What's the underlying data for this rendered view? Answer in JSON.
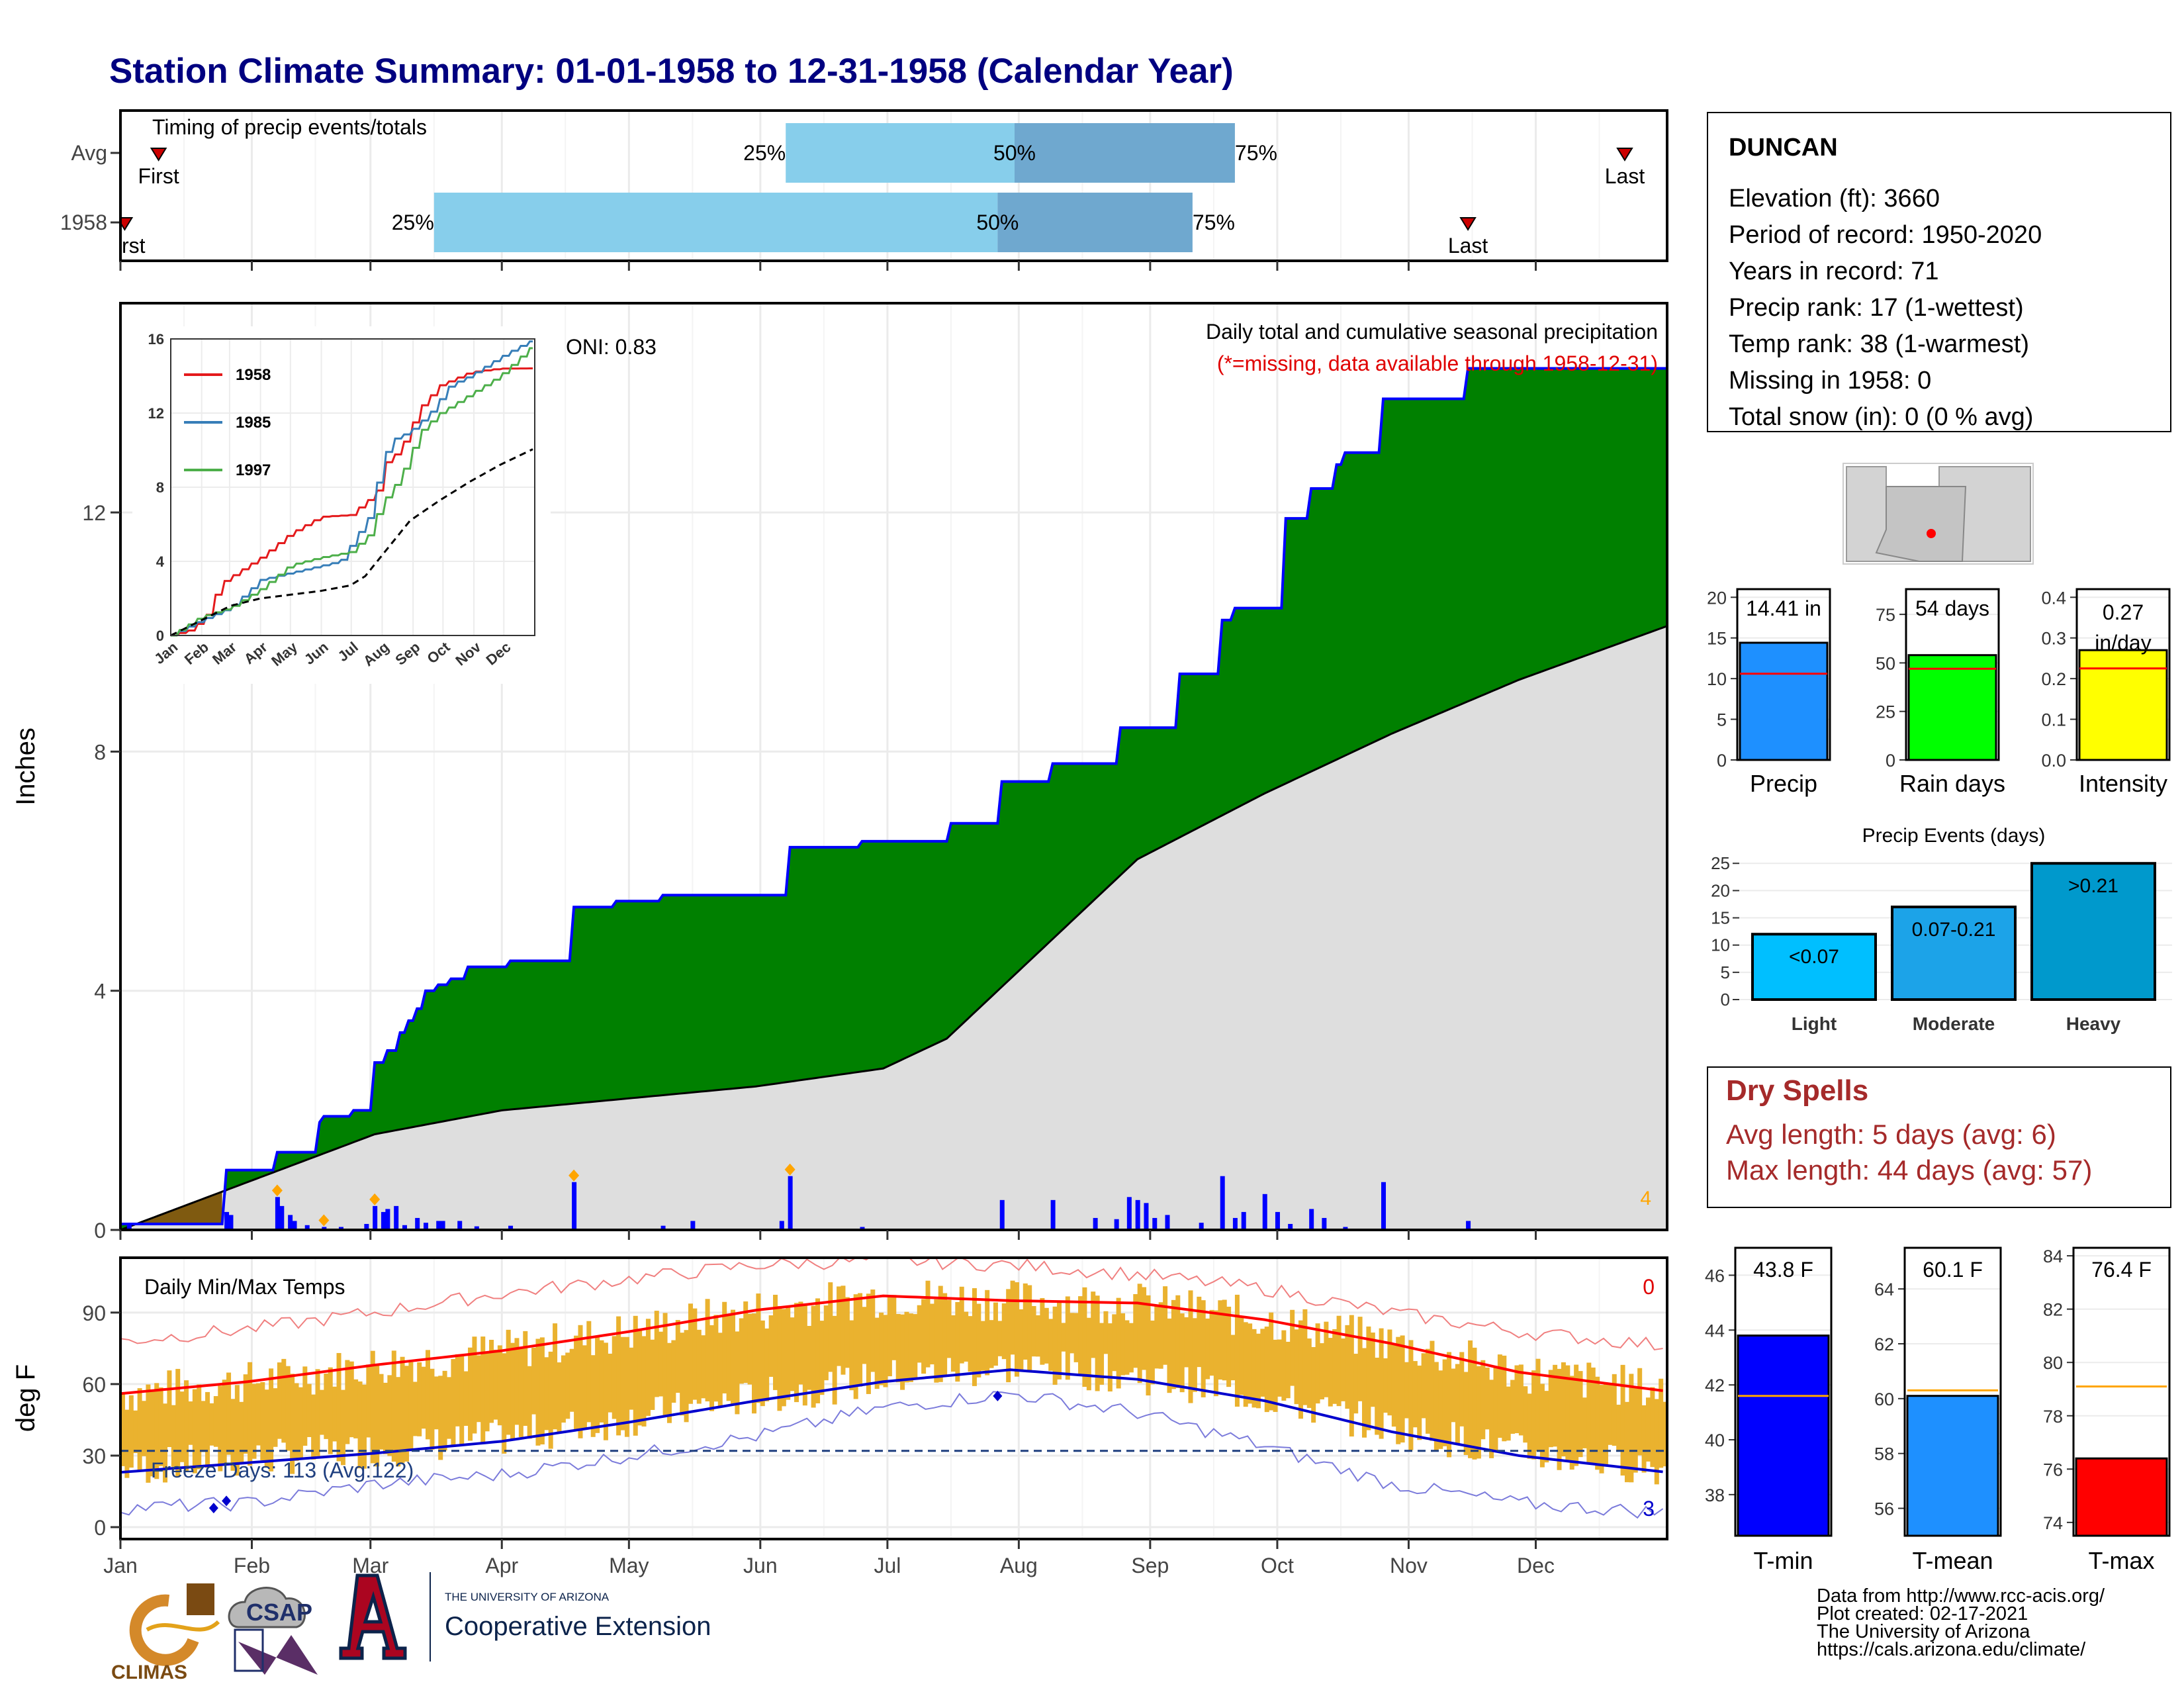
{
  "page_title": "Station Climate Summary: 01-01-1958 to 12-31-1958 (Calendar Year)",
  "colors": {
    "title": "#000080",
    "precip_green": "#008000",
    "precip_avg": "#dedede",
    "deficit_brown": "#7f5a10",
    "cum_line": "#0000ff",
    "daily_bar": "#0000ff",
    "quartile_light": "#87ceeb",
    "quartile_dark": "#6fa8cf",
    "marker_red": "#cc0000",
    "temp_bar": "#eab22f",
    "tmax_line": "#ff0000",
    "tmin_line": "#0000cd",
    "record_max": "#f08080",
    "record_min": "#7b7bdb",
    "dry_text": "#a52a2a"
  },
  "months": [
    "Jan",
    "Feb",
    "Mar",
    "Apr",
    "May",
    "Jun",
    "Jul",
    "Aug",
    "Sep",
    "Oct",
    "Nov",
    "Dec"
  ],
  "timing_panel": {
    "title": "Timing of precip events/totals",
    "rows": [
      {
        "label": "Avg",
        "first_label": "First",
        "first_day": 9,
        "last_label": "Last",
        "last_day": 355,
        "q25_label": "25%",
        "q50_label": "50%",
        "q75_label": "75%",
        "q25": 157,
        "q50": 211,
        "q75": 263
      },
      {
        "label": "1958",
        "first_label": "First",
        "first_day": 1,
        "last_label": "Last",
        "last_day": 318,
        "q25_label": "25%",
        "q50_label": "50%",
        "q75_label": "75%",
        "q25": 74,
        "q50": 207,
        "q75": 253
      }
    ]
  },
  "precip_panel": {
    "title": "Daily total and cumulative seasonal precipitation",
    "missing_note": "(*=missing, data available through 1958-12-31)",
    "oni": "ONI: 0.83",
    "ylabel": "Inches",
    "yticks": [
      "0",
      "4",
      "8",
      "12"
    ],
    "corner_count": "4"
  },
  "chart_data": [
    {
      "type": "area",
      "title": "Daily total and cumulative seasonal precipitation",
      "ylabel": "Inches",
      "ylim": [
        0,
        15.5
      ],
      "x_unit": "day of year",
      "series": [
        {
          "name": "1958 cumulative",
          "x": [
            1,
            25,
            37,
            47,
            48,
            55,
            60,
            63,
            66,
            68,
            70,
            72,
            75,
            78,
            82,
            92,
            107,
            117,
            128,
            158,
            175,
            196,
            208,
            220,
            236,
            250,
            260,
            263,
            275,
            281,
            287,
            289,
            298,
            318,
            365
          ],
          "y": [
            0.1,
            1.0,
            1.3,
            1.8,
            1.9,
            2.0,
            2.8,
            3.0,
            3.3,
            3.5,
            3.7,
            4.0,
            4.1,
            4.2,
            4.4,
            4.5,
            5.4,
            5.5,
            5.6,
            6.4,
            6.5,
            6.8,
            7.5,
            7.8,
            8.4,
            9.3,
            10.2,
            10.4,
            11.9,
            12.4,
            12.8,
            13.0,
            13.9,
            14.41,
            14.41
          ]
        },
        {
          "name": "average cumulative",
          "x": [
            0,
            30,
            60,
            90,
            120,
            150,
            180,
            195,
            210,
            240,
            270,
            300,
            330,
            365
          ],
          "y": [
            0.0,
            0.8,
            1.6,
            2.0,
            2.2,
            2.4,
            2.7,
            3.2,
            4.2,
            6.2,
            7.3,
            8.3,
            9.2,
            10.1
          ]
        }
      ],
      "daily_precip": {
        "x": [
          2,
          25,
          26,
          37,
          38,
          40,
          41,
          44,
          48,
          52,
          58,
          60,
          62,
          63,
          65,
          67,
          70,
          72,
          75,
          76,
          80,
          84,
          92,
          107,
          128,
          135,
          156,
          158,
          175,
          208,
          220,
          230,
          235,
          238,
          240,
          242,
          244,
          247,
          255,
          260,
          263,
          265,
          270,
          273,
          276,
          281,
          284,
          289,
          298,
          318
        ],
        "y": [
          0.12,
          0.3,
          0.25,
          0.55,
          0.4,
          0.25,
          0.15,
          0.08,
          0.05,
          0.05,
          0.1,
          0.4,
          0.3,
          0.35,
          0.4,
          0.08,
          0.2,
          0.12,
          0.15,
          0.15,
          0.15,
          0.06,
          0.07,
          0.8,
          0.07,
          0.15,
          0.15,
          0.9,
          0.05,
          0.5,
          0.5,
          0.2,
          0.18,
          0.55,
          0.5,
          0.45,
          0.2,
          0.25,
          0.12,
          0.9,
          0.2,
          0.3,
          0.6,
          0.3,
          0.1,
          0.35,
          0.2,
          0.05,
          0.8,
          0.15
        ]
      },
      "missing_markers": [
        37,
        48,
        60,
        107,
        158
      ]
    },
    {
      "type": "line",
      "title": "",
      "inset": true,
      "ylim": [
        0,
        16
      ],
      "yticks": [
        "0",
        "4",
        "8",
        "12",
        "16"
      ],
      "xticks": [
        "Jan",
        "Feb",
        "Mar",
        "Apr",
        "May",
        "Jun",
        "Jul",
        "Aug",
        "Sep",
        "Oct",
        "Nov",
        "Dec"
      ],
      "series": [
        {
          "name": "1958",
          "color": "#e41a1c",
          "x": [
            0,
            20,
            35,
            50,
            70,
            90,
            120,
            150,
            180,
            200,
            210,
            215,
            230,
            250,
            270,
            300,
            330,
            365
          ],
          "y": [
            0,
            0.3,
            1.0,
            2.8,
            3.5,
            4.2,
            5.5,
            6.4,
            6.5,
            7.4,
            8.0,
            9.3,
            10.0,
            12.3,
            13.5,
            14.2,
            14.4,
            14.41
          ]
        },
        {
          "name": "1985",
          "color": "#377eb8",
          "x": [
            0,
            30,
            60,
            90,
            130,
            170,
            200,
            210,
            220,
            240,
            260,
            280,
            300,
            330,
            350,
            365
          ],
          "y": [
            0,
            0.8,
            1.5,
            3.0,
            3.5,
            4.0,
            6.5,
            9.0,
            10.5,
            11.0,
            12.0,
            13.5,
            14.0,
            15.0,
            15.6,
            16.0
          ]
        },
        {
          "name": "1997",
          "color": "#4daf4a",
          "x": [
            0,
            30,
            60,
            90,
            120,
            150,
            180,
            200,
            210,
            230,
            250,
            270,
            300,
            330,
            360,
            365
          ],
          "y": [
            0,
            1.0,
            1.5,
            2.5,
            3.8,
            4.2,
            4.5,
            5.5,
            7.0,
            8.5,
            11.0,
            12.0,
            13.0,
            14.0,
            15.5,
            15.7
          ]
        },
        {
          "name": "average",
          "color": "#000000",
          "x": [
            0,
            30,
            60,
            90,
            120,
            150,
            180,
            195,
            210,
            240,
            270,
            300,
            330,
            365
          ],
          "y": [
            0,
            0.8,
            1.6,
            2.0,
            2.2,
            2.4,
            2.7,
            3.2,
            4.2,
            6.2,
            7.3,
            8.3,
            9.2,
            10.1
          ]
        }
      ]
    },
    {
      "type": "bar",
      "title": "Daily Min/Max Temps",
      "ylabel": "deg F",
      "ylim": [
        -5,
        113
      ],
      "yticks": [
        "0",
        "30",
        "60",
        "90"
      ],
      "freeze_label": "Freeze Days: 113 (Avg:122)",
      "count_top": "0",
      "count_bottom": "3",
      "avg_tmax": {
        "x": [
          0,
          30,
          60,
          90,
          120,
          150,
          180,
          210,
          240,
          270,
          300,
          330,
          365
        ],
        "y": [
          56,
          61,
          68,
          74,
          82,
          91,
          97,
          95,
          94,
          87,
          77,
          65,
          57
        ]
      },
      "avg_tmin": {
        "x": [
          0,
          30,
          60,
          90,
          120,
          150,
          180,
          210,
          240,
          270,
          300,
          330,
          365
        ],
        "y": [
          23,
          27,
          31,
          36,
          44,
          53,
          61,
          66,
          62,
          53,
          40,
          30,
          23
        ]
      },
      "record_max": {
        "x": [
          0,
          30,
          60,
          90,
          120,
          150,
          180,
          210,
          240,
          270,
          300,
          330,
          365
        ],
        "y": [
          78,
          83,
          90,
          98,
          104,
          110,
          112,
          110,
          106,
          100,
          90,
          82,
          76
        ]
      },
      "record_min": {
        "x": [
          0,
          30,
          60,
          90,
          120,
          150,
          180,
          210,
          240,
          270,
          300,
          330,
          365
        ],
        "y": [
          8,
          10,
          18,
          22,
          30,
          38,
          50,
          56,
          48,
          34,
          18,
          10,
          6
        ]
      },
      "freeze_threshold": 32
    }
  ],
  "station_info": {
    "name": "DUNCAN",
    "lines": [
      "Elevation (ft): 3660",
      "Period of record: 1950-2020",
      "Years in record: 71",
      "Precip rank: 17 (1-wettest)",
      "Temp rank: 38 (1-warmest)",
      "Missing in 1958: 0",
      "Total snow (in): 0 (0 % avg)"
    ]
  },
  "summary_bars": [
    {
      "name": "Precip",
      "label": "14.41 in",
      "value": 14.41,
      "avg": 10.6,
      "ymax": 21,
      "ticks": [
        "0",
        "5",
        "10",
        "15",
        "20"
      ],
      "tickvals": [
        0,
        5,
        10,
        15,
        20
      ],
      "color": "#1e90ff"
    },
    {
      "name": "Rain days",
      "label": "54 days",
      "value": 54,
      "avg": 47,
      "ymax": 88,
      "ticks": [
        "0",
        "25",
        "50",
        "75"
      ],
      "tickvals": [
        0,
        25,
        50,
        75
      ],
      "color": "#00ff00"
    },
    {
      "name": "Intensity",
      "label1": "0.27",
      "label2": "in/day",
      "value": 0.27,
      "avg": 0.225,
      "ymax": 0.42,
      "ticks": [
        "0.0",
        "0.1",
        "0.2",
        "0.3",
        "0.4"
      ],
      "tickvals": [
        0,
        0.1,
        0.2,
        0.3,
        0.4
      ],
      "color": "#ffff00"
    }
  ],
  "precip_events": {
    "title": "Precip Events (days)",
    "yticks": [
      "0",
      "5",
      "10",
      "15",
      "20",
      "25"
    ],
    "bars": [
      {
        "name": "Light",
        "label": "<0.07",
        "value": 12
      },
      {
        "name": "Moderate",
        "label": "0.07-0.21",
        "value": 17
      },
      {
        "name": "Heavy",
        "label": ">0.21",
        "value": 25
      }
    ]
  },
  "dry_spells": {
    "title": "Dry Spells",
    "avg_line": "Avg length: 5 days (avg: 6)",
    "max_line": "Max length: 44 days (avg: 57)"
  },
  "temp_bars": [
    {
      "name": "T-min",
      "label": "43.8 F",
      "value": 43.8,
      "avg": 41.6,
      "ymin": 36.5,
      "ymax": 47,
      "ticks": [
        "38",
        "40",
        "42",
        "44",
        "46"
      ],
      "tickvals": [
        38,
        40,
        42,
        44,
        46
      ],
      "color": "#0000ff"
    },
    {
      "name": "T-mean",
      "label": "60.1 F",
      "value": 60.1,
      "avg": 60.3,
      "ymin": 55,
      "ymax": 65.5,
      "ticks": [
        "56",
        "58",
        "60",
        "62",
        "64"
      ],
      "tickvals": [
        56,
        58,
        60,
        62,
        64
      ],
      "color": "#1e90ff"
    },
    {
      "name": "T-max",
      "label": "76.4 F",
      "value": 76.4,
      "avg": 79.1,
      "ymin": 73.5,
      "ymax": 84.3,
      "ticks": [
        "74",
        "76",
        "78",
        "80",
        "82",
        "84"
      ],
      "tickvals": [
        74,
        76,
        78,
        80,
        82,
        84
      ],
      "color": "#ff0000"
    }
  ],
  "footer": {
    "lines": [
      "Data from http://www.rcc-acis.org/",
      "Plot created: 02-17-2021",
      "The University of Arizona",
      "https://cals.arizona.edu/climate/"
    ],
    "logo_climas": "CLIMAS",
    "logo_csap": "CSAP",
    "ua_small": "THE UNIVERSITY OF ARIZONA",
    "ua_big": "Cooperative Extension"
  }
}
